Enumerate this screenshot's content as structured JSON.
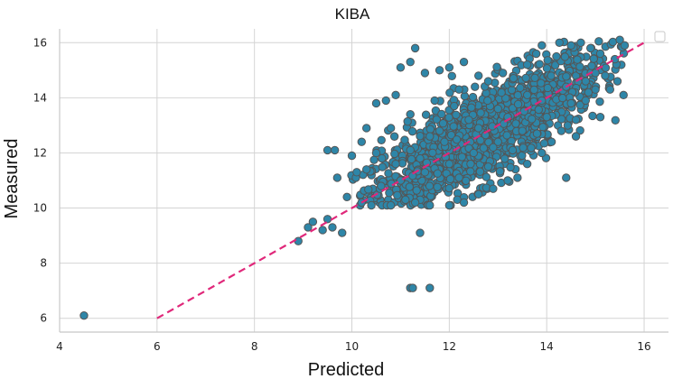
{
  "chart_data": {
    "type": "scatter",
    "title": "KIBA",
    "xlabel": "Predicted",
    "ylabel": "Measured",
    "xlim": [
      4,
      16.5
    ],
    "ylim": [
      5.5,
      16.5
    ],
    "x_ticks": [
      4,
      6,
      8,
      10,
      12,
      14,
      16
    ],
    "y_ticks": [
      6,
      8,
      10,
      12,
      14,
      16
    ],
    "grid": true,
    "legend": "top-right (empty)",
    "colors": {
      "points": "#2e86a8",
      "point_edge": "#555555",
      "reference_line": "#e0287a"
    },
    "reference_line": {
      "style": "dashed",
      "from": [
        6,
        6
      ],
      "to": [
        16,
        16
      ]
    },
    "cloud": {
      "description_points": "dense cluster along diagonal",
      "center": [
        12.5,
        12.5
      ],
      "x_range": [
        9,
        15.8
      ],
      "y_range": [
        8.8,
        16.1
      ]
    },
    "points": [
      [
        4.5,
        6.1
      ],
      [
        11.2,
        7.1
      ],
      [
        11.25,
        7.1
      ],
      [
        11.6,
        7.1
      ],
      [
        11.4,
        9.1
      ],
      [
        8.9,
        8.8
      ],
      [
        9.1,
        9.3
      ],
      [
        9.2,
        9.5
      ],
      [
        9.4,
        9.2
      ],
      [
        9.6,
        9.3
      ],
      [
        9.8,
        9.1
      ],
      [
        9.5,
        9.6
      ],
      [
        9.5,
        12.1
      ],
      [
        9.65,
        12.1
      ],
      [
        9.7,
        11.1
      ],
      [
        11.0,
        15.1
      ],
      [
        11.2,
        15.3
      ],
      [
        11.3,
        15.8
      ],
      [
        13.9,
        15.9
      ],
      [
        15.5,
        16.1
      ],
      [
        15.6,
        15.9
      ],
      [
        14.7,
        16.0
      ],
      [
        14.5,
        15.9
      ],
      [
        14.4,
        11.1
      ],
      [
        13.4,
        11.1
      ],
      [
        15.1,
        13.3
      ],
      [
        15.3,
        14.3
      ],
      [
        14.6,
        12.6
      ],
      [
        11.5,
        14.9
      ],
      [
        11.8,
        15.0
      ],
      [
        12.0,
        15.1
      ],
      [
        12.3,
        15.3
      ],
      [
        12.6,
        14.8
      ],
      [
        10.5,
        13.8
      ],
      [
        10.7,
        13.9
      ],
      [
        10.9,
        14.1
      ],
      [
        10.3,
        12.9
      ],
      [
        10.2,
        12.4
      ],
      [
        10.0,
        11.9
      ],
      [
        10.1,
        11.3
      ],
      [
        9.9,
        10.4
      ],
      [
        10.2,
        10.2
      ],
      [
        10.4,
        10.1
      ],
      [
        10.8,
        10.1
      ],
      [
        11.1,
        10.3
      ],
      [
        11.3,
        10.2
      ],
      [
        11.6,
        10.1
      ],
      [
        12.0,
        10.1
      ],
      [
        12.3,
        10.2
      ],
      [
        12.6,
        10.5
      ],
      [
        12.9,
        10.7
      ],
      [
        13.2,
        11.0
      ],
      [
        13.6,
        11.6
      ],
      [
        13.9,
        12.0
      ],
      [
        14.1,
        12.4
      ],
      [
        14.3,
        12.8
      ],
      [
        14.6,
        13.2
      ],
      [
        14.8,
        13.9
      ],
      [
        15.0,
        14.3
      ],
      [
        15.2,
        14.8
      ],
      [
        15.4,
        15.4
      ],
      [
        15.1,
        15.6
      ],
      [
        14.9,
        15.8
      ],
      [
        14.2,
        15.5
      ],
      [
        13.6,
        15.2
      ],
      [
        13.1,
        14.9
      ],
      [
        12.8,
        14.6
      ],
      [
        12.2,
        14.3
      ],
      [
        11.7,
        13.9
      ],
      [
        11.2,
        13.4
      ],
      [
        10.8,
        12.9
      ],
      [
        10.5,
        12.0
      ],
      [
        10.3,
        11.4
      ],
      [
        10.6,
        10.8
      ],
      [
        11.0,
        11.0
      ],
      [
        11.5,
        11.3
      ],
      [
        12.0,
        11.6
      ],
      [
        12.5,
        12.0
      ],
      [
        13.0,
        12.4
      ],
      [
        13.5,
        12.8
      ],
      [
        14.0,
        13.3
      ],
      [
        14.5,
        13.8
      ],
      [
        15.0,
        14.9
      ],
      [
        11.2,
        12.1
      ],
      [
        11.8,
        12.8
      ],
      [
        12.4,
        13.2
      ],
      [
        13.0,
        13.6
      ],
      [
        13.6,
        14.1
      ],
      [
        12.2,
        11.1
      ],
      [
        12.8,
        11.5
      ],
      [
        13.3,
        12.1
      ],
      [
        13.8,
        12.7
      ],
      [
        11.4,
        11.8
      ],
      [
        10.9,
        11.6
      ],
      [
        11.9,
        12.4
      ],
      [
        12.6,
        12.9
      ],
      [
        13.2,
        13.3
      ],
      [
        13.9,
        13.9
      ],
      [
        14.4,
        14.4
      ],
      [
        14.8,
        14.6
      ],
      [
        12.1,
        13.7
      ],
      [
        11.6,
        12.6
      ],
      [
        12.9,
        12.2
      ]
    ]
  }
}
